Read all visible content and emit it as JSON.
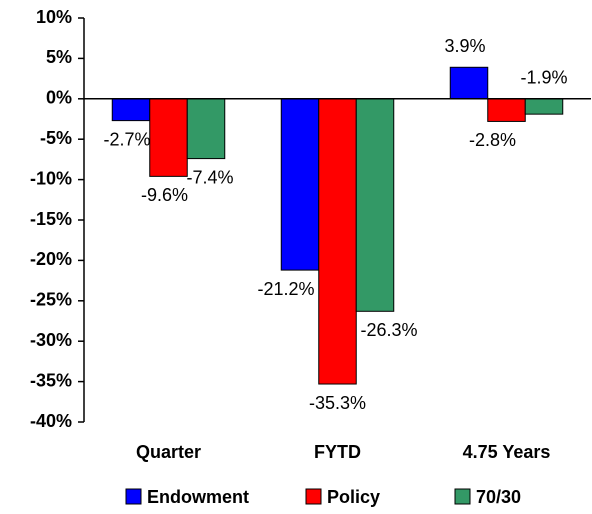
{
  "chart_data": {
    "type": "bar",
    "categories": [
      "Quarter",
      "FYTD",
      "4.75 Years"
    ],
    "series": [
      {
        "name": "Endowment",
        "color": "#0000ff",
        "values": [
          -2.7,
          -21.2,
          3.9
        ],
        "value_labels": [
          "-2.7%",
          "-21.2%",
          "3.9%"
        ]
      },
      {
        "name": "Policy",
        "color": "#ff0000",
        "values": [
          -9.6,
          -35.3,
          -2.8
        ],
        "value_labels": [
          "-9.6%",
          "-35.3%",
          "-2.8%"
        ]
      },
      {
        "name": "70/30",
        "color": "#339966",
        "values": [
          -7.4,
          -26.3,
          -1.9
        ],
        "value_labels": [
          "-7.4%",
          "-26.3%",
          "-1.9%"
        ]
      }
    ],
    "ylim": [
      -40,
      10
    ],
    "yticks": [
      {
        "value": -40,
        "label": "-40%"
      },
      {
        "value": -35,
        "label": "-35%"
      },
      {
        "value": -30,
        "label": "-30%"
      },
      {
        "value": -25,
        "label": "-25%"
      },
      {
        "value": -20,
        "label": "-20%"
      },
      {
        "value": -15,
        "label": "-15%"
      },
      {
        "value": -10,
        "label": "-10%"
      },
      {
        "value": -5,
        "label": "-5%"
      },
      {
        "value": 0,
        "label": "0%"
      },
      {
        "value": 5,
        "label": "5%"
      },
      {
        "value": 10,
        "label": "10%"
      }
    ],
    "grid": false,
    "legend": "bottom"
  }
}
